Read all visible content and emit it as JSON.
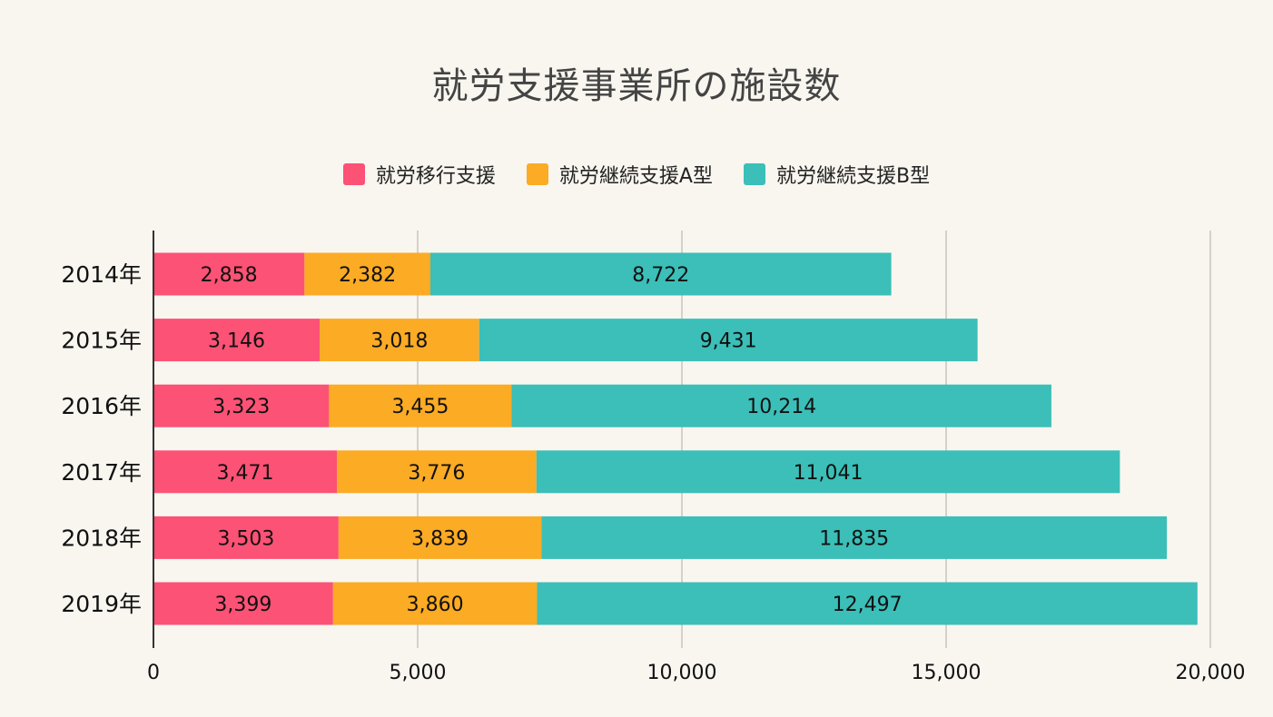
{
  "chart_data": {
    "type": "bar",
    "orientation": "horizontal",
    "stacked": true,
    "title": "就労支援事業所の施設数",
    "categories": [
      "2014年",
      "2015年",
      "2016年",
      "2017年",
      "2018年",
      "2019年"
    ],
    "series": [
      {
        "name": "就労移行支援",
        "color": "#fc5275",
        "values": [
          2858,
          3146,
          3323,
          3471,
          3503,
          3399
        ],
        "labels": [
          "2,858",
          "3,146",
          "3,323",
          "3,471",
          "3,503",
          "3,399"
        ]
      },
      {
        "name": "就労継続支援A型",
        "color": "#fbab24",
        "values": [
          2382,
          3018,
          3455,
          3776,
          3839,
          3860
        ],
        "labels": [
          "2,382",
          "3,018",
          "3,455",
          "3,776",
          "3,839",
          "3,860"
        ]
      },
      {
        "name": "就労継続支援B型",
        "color": "#3bbfb8",
        "values": [
          8722,
          9431,
          10214,
          11041,
          11835,
          12497
        ],
        "labels": [
          "8,722",
          "9,431",
          "10,214",
          "11,041",
          "11,835",
          "12,497"
        ]
      }
    ],
    "xlim": [
      0,
      20000
    ],
    "xticks": [
      0,
      5000,
      10000,
      15000,
      20000
    ],
    "xtick_labels": [
      "0",
      "5,000",
      "10,000",
      "15,000",
      "20,000"
    ],
    "grid": true,
    "legend_position": "top-center"
  }
}
